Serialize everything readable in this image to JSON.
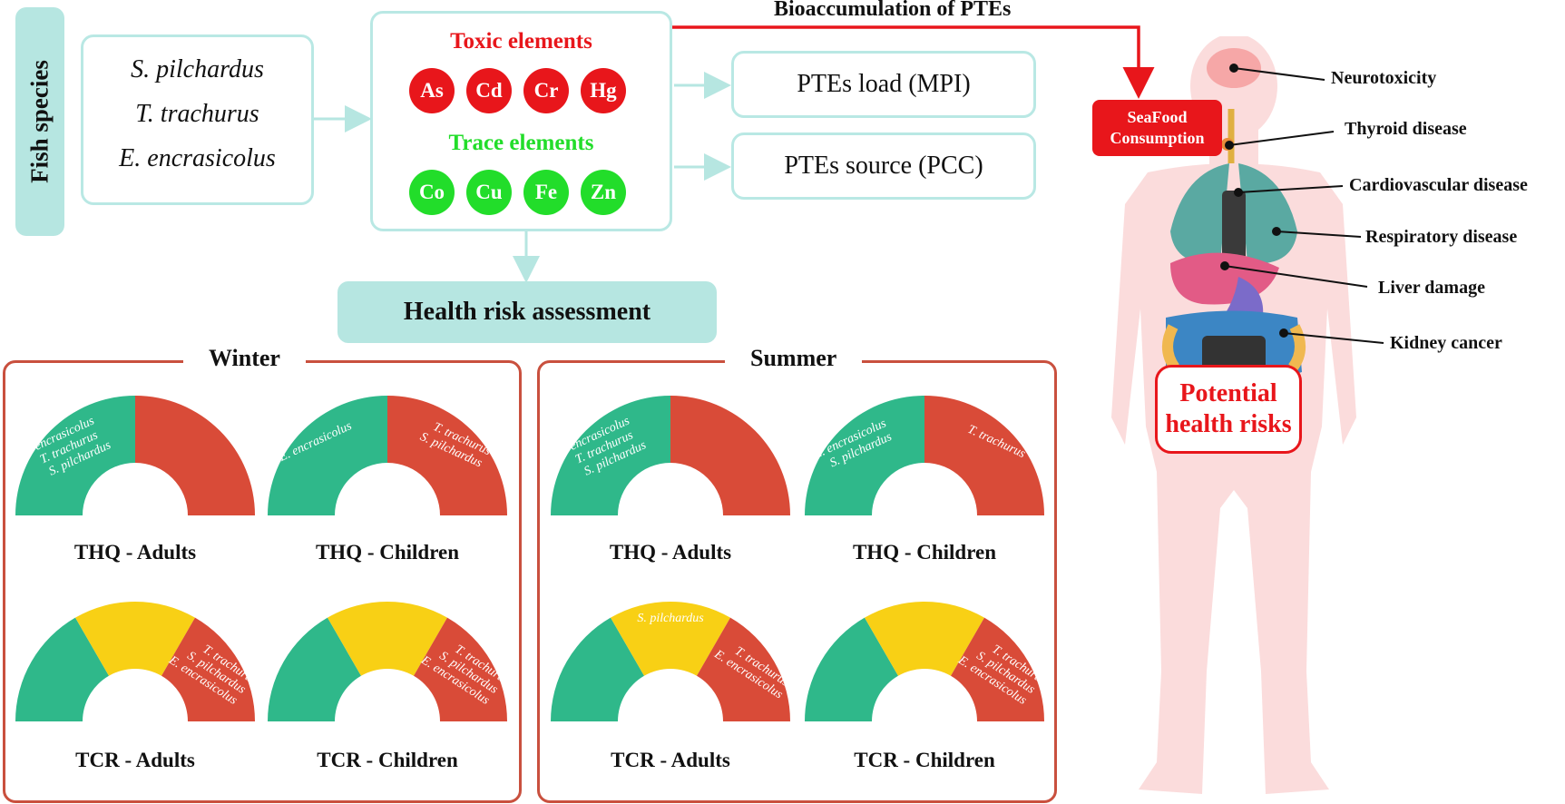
{
  "fish": {
    "title": "Fish species",
    "species": [
      "S. pilchardus",
      "T. trachurus",
      "E. encrasicolus"
    ]
  },
  "elements": {
    "toxic_title": "Toxic elements",
    "toxic": [
      "As",
      "Cd",
      "Cr",
      "Hg"
    ],
    "trace_title": "Trace elements",
    "trace": [
      "Co",
      "Cu",
      "Fe",
      "Zn"
    ]
  },
  "outputs": {
    "load": "PTEs load (MPI)",
    "source": "PTEs source (PCC)"
  },
  "bioaccumulation": "Bioaccumulation of PTEs",
  "health_risk": "Health risk assessment",
  "seasons": {
    "winter": {
      "title": "Winter",
      "gauges": [
        {
          "label": "THQ - Adults",
          "green": [
            "E. encrasicolus",
            "T. trachurus",
            "S. pilchardus"
          ],
          "yellow": [],
          "red": []
        },
        {
          "label": "THQ - Children",
          "green": [
            "E. encrasicolus"
          ],
          "yellow": [],
          "red": [
            "T. trachurus",
            "S. pilchardus"
          ]
        },
        {
          "label": "TCR - Adults",
          "green": [],
          "yellow": [],
          "red": [
            "T. trachurus",
            "S. pilchardus",
            "E. encrasicolus"
          ]
        },
        {
          "label": "TCR - Children",
          "green": [],
          "yellow": [],
          "red": [
            "T. trachurus",
            "S. pilchardus",
            "E. encrasicolus"
          ]
        }
      ]
    },
    "summer": {
      "title": "Summer",
      "gauges": [
        {
          "label": "THQ - Adults",
          "green": [
            "E. encrasicolus",
            "T. trachurus",
            "S. pilchardus"
          ],
          "yellow": [],
          "red": []
        },
        {
          "label": "THQ - Children",
          "green": [
            "E. encrasicolus",
            "S. pilchardus"
          ],
          "yellow": [],
          "red": [
            "T. trachurus"
          ]
        },
        {
          "label": "TCR - Adults",
          "green": [],
          "yellow": [
            "S. pilchardus"
          ],
          "red": [
            "T. trachurus",
            "E. encrasicolus"
          ]
        },
        {
          "label": "TCR - Children",
          "green": [],
          "yellow": [],
          "red": [
            "T. trachurus",
            "S. pilchardus",
            "E. encrasicolus"
          ]
        }
      ]
    }
  },
  "body": {
    "seafood": [
      "SeaFood",
      "Consumption"
    ],
    "risk": [
      "Potential",
      "health risks"
    ],
    "diseases": [
      "Neurotoxicity",
      "Thyroid disease",
      "Cardiovascular disease",
      "Respiratory disease",
      "Liver damage",
      "Kidney cancer"
    ]
  },
  "colors": {
    "teal": "#b6e6e1",
    "teal_border": "#b9e8e4",
    "gauge_green": "#2fb88a",
    "gauge_yellow": "#f8d015",
    "gauge_red": "#d94b38",
    "toxic_red": "#e8161b",
    "trace_green": "#22dd2a",
    "frame_red": "#c9503e"
  }
}
